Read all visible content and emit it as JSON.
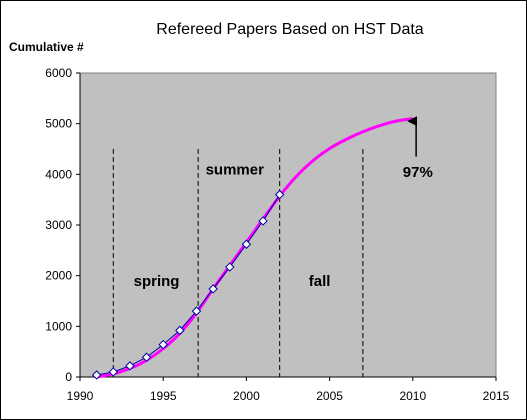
{
  "chart_data": {
    "type": "line",
    "title": "Refereed Papers Based on HST Data",
    "ylabel": "Cumulative #",
    "xlabel": "",
    "xlim": [
      1990,
      2015
    ],
    "ylim": [
      0,
      6000
    ],
    "x_ticks": [
      "1990",
      "1995",
      "2000",
      "2005",
      "2010",
      "2015"
    ],
    "y_ticks": [
      "0",
      "1000",
      "2000",
      "3000",
      "4000",
      "5000",
      "6000"
    ],
    "grid": false,
    "plot_background": "#c0c0c0",
    "series": [
      {
        "name": "",
        "style": "trend-curve",
        "color": "#ff00ff",
        "x": [
          1991,
          1992,
          1993,
          1994,
          1995,
          1996,
          1997,
          1998,
          1999,
          2000,
          2001,
          2002,
          2003,
          2004,
          2005,
          2006,
          2007,
          2008,
          2009,
          2010
        ],
        "values": [
          0,
          60,
          170,
          330,
          560,
          860,
          1260,
          1740,
          2200,
          2660,
          3120,
          3570,
          3960,
          4270,
          4510,
          4690,
          4840,
          4960,
          5050,
          5100
        ]
      },
      {
        "name": "",
        "style": "data-points",
        "color": "#0000a0",
        "x": [
          1991,
          1992,
          1993,
          1994,
          1995,
          1996,
          1997,
          1998,
          1999,
          2000,
          2001,
          2002
        ],
        "values": [
          40,
          100,
          220,
          390,
          640,
          920,
          1300,
          1740,
          2170,
          2620,
          3080,
          3600
        ]
      }
    ],
    "vlines": [
      1992,
      1997.1,
      2002,
      2007
    ],
    "annotations": [
      {
        "text": "spring",
        "x": 1994.6,
        "y": 1800
      },
      {
        "text": "summer",
        "x": 1999.3,
        "y": 4000
      },
      {
        "text": "fall",
        "x": 2004.4,
        "y": 1800
      },
      {
        "text": "97%",
        "x": 2010.3,
        "y": 3950
      }
    ],
    "arrow": {
      "from": [
        2010.2,
        4350
      ],
      "to": [
        2010.2,
        5050
      ]
    }
  }
}
